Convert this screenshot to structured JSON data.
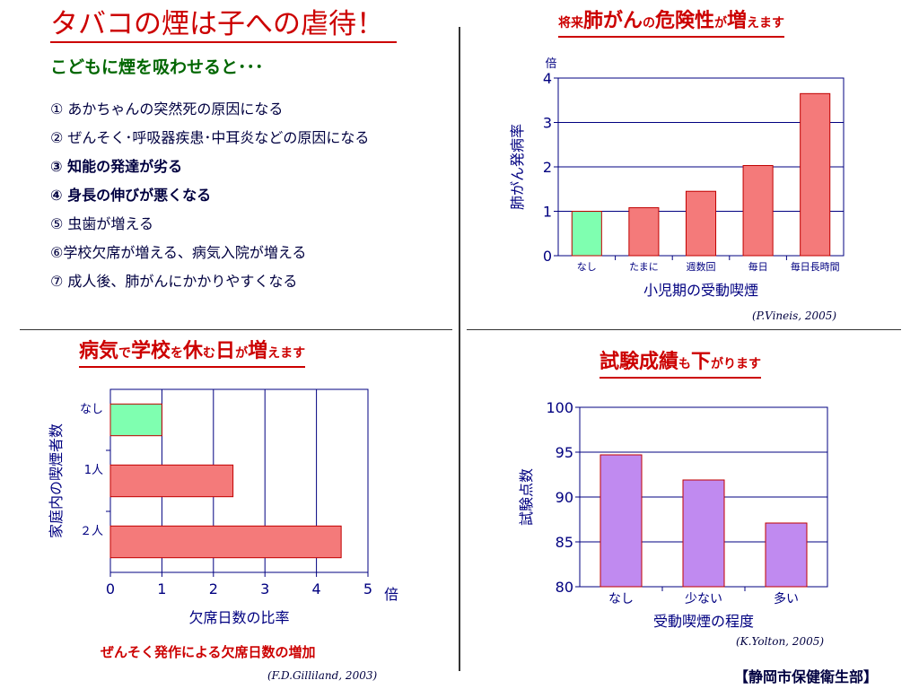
{
  "page": {
    "title": "タバコの煙は子への虐待！",
    "subtitle": "こどもに煙を吸わせると･･･",
    "effects": [
      "① あかちゃんの突然死の原因になる",
      "② ぜんそく･呼吸器疾患･中耳炎などの原因になる",
      "③ 知能の発達が劣る",
      "④ 身長の伸びが悪くなる",
      "⑤ 虫歯が増える",
      "⑥学校欠席が増える、病気入院が増える",
      "⑦ 成人後、肺がんにかかりやすくなる"
    ],
    "footer": "【静岡市保健衛生部】"
  },
  "charts": {
    "lung": {
      "title_parts": [
        "将来",
        "肺がん",
        "の",
        "危険性",
        "が",
        "増",
        "えます"
      ],
      "citation": "(P.Vineis, 2005)"
    },
    "absence": {
      "title_parts": [
        "病気",
        "で",
        "学校",
        "を",
        "休",
        "む",
        "日",
        "が",
        "増",
        "えます"
      ],
      "caption": "ぜんそく発作による欠席日数の増加",
      "citation": "(F.D.Gilliland, 2003)"
    },
    "exam": {
      "title_parts": [
        "試験成績",
        "も",
        "下",
        "がります"
      ],
      "citation": "(K.Yolton, 2005)"
    }
  },
  "colors": {
    "accent_red": "#cc0000",
    "green_bar": "#7fffb0",
    "red_bar": "#f47a7a",
    "purple_bar": "#c08af0",
    "axis": "#000080"
  },
  "chart_data": [
    {
      "id": "lung",
      "type": "bar",
      "categories": [
        "なし",
        "たまに",
        "週数回",
        "毎日",
        "毎日長時間"
      ],
      "values": [
        1.0,
        1.08,
        1.45,
        2.03,
        3.65
      ],
      "xlabel": "小児期の受動喫煙",
      "ylabel": "肺がん発病率",
      "yunit": "倍",
      "ylim": [
        0,
        4
      ],
      "yticks": [
        0,
        1,
        2,
        3,
        4
      ],
      "grid": true,
      "bar_colors": [
        "#7fffb0",
        "#f47a7a",
        "#f47a7a",
        "#f47a7a",
        "#f47a7a"
      ]
    },
    {
      "id": "absence",
      "type": "bar",
      "orientation": "horizontal",
      "categories": [
        "なし",
        "1人",
        "２人"
      ],
      "values": [
        1.0,
        2.38,
        4.48
      ],
      "xlabel": "欠席日数の比率",
      "xunit": "倍",
      "ylabel": "家庭内の喫煙者数",
      "xlim": [
        0,
        5
      ],
      "xticks": [
        0,
        1,
        2,
        3,
        4,
        5
      ],
      "grid": true,
      "bar_colors": [
        "#7fffb0",
        "#f47a7a",
        "#f47a7a"
      ]
    },
    {
      "id": "exam",
      "type": "bar",
      "categories": [
        "なし",
        "少ない",
        "多い"
      ],
      "values": [
        94.7,
        91.9,
        87.1
      ],
      "xlabel": "受動喫煙の程度",
      "ylabel": "試験点数",
      "ylim": [
        80,
        100
      ],
      "yticks": [
        80,
        85,
        90,
        95,
        100
      ],
      "grid": true,
      "bar_colors": [
        "#c08af0",
        "#c08af0",
        "#c08af0"
      ]
    }
  ]
}
